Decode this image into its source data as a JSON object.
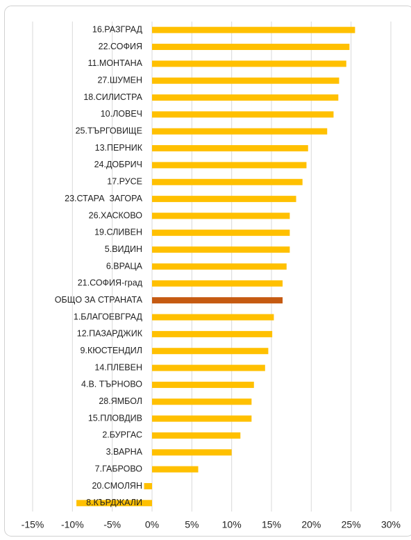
{
  "chart_data": {
    "type": "barh",
    "categories": [
      "16.РАЗГРАД",
      "22.СОФИЯ",
      "11.МОНТАНА",
      "27.ШУМЕН",
      "18.СИЛИСТРА",
      "10.ЛОВЕЧ",
      "25.ТЪРГОВИЩЕ",
      "13.ПЕРНИК",
      "24.ДОБРИЧ",
      "17.РУСЕ",
      "23.СТАРА  ЗАГОРА",
      "26.ХАСКОВО",
      "19.СЛИВЕН",
      "5.ВИДИН",
      "6.ВРАЦА",
      "21.СОФИЯ-град",
      "ОБЩО ЗА СТРАНАТА",
      "1.БЛАГОЕВГРАД",
      "12.ПАЗАРДЖИК",
      "9.КЮСТЕНДИЛ",
      "14.ПЛЕВЕН",
      "4.В. ТЪРНОВО",
      "28.ЯМБОЛ",
      "15.ПЛОВДИВ",
      "2.БУРГАС",
      "3.ВАРНА",
      "7.ГАБРОВО",
      "20.СМОЛЯН",
      "8.КЪРДЖАЛИ"
    ],
    "values": [
      25.5,
      24.8,
      24.4,
      23.5,
      23.4,
      22.8,
      22.0,
      19.6,
      19.4,
      18.9,
      18.1,
      17.3,
      17.3,
      17.3,
      16.9,
      16.4,
      16.4,
      15.3,
      15.1,
      14.6,
      14.2,
      12.8,
      12.5,
      12.5,
      11.1,
      10.0,
      5.8,
      -1.0,
      -9.5
    ],
    "colors": [
      "#ffc000",
      "#ffc000",
      "#ffc000",
      "#ffc000",
      "#ffc000",
      "#ffc000",
      "#ffc000",
      "#ffc000",
      "#ffc000",
      "#ffc000",
      "#ffc000",
      "#ffc000",
      "#ffc000",
      "#ffc000",
      "#ffc000",
      "#ffc000",
      "#c55a11",
      "#ffc000",
      "#ffc000",
      "#ffc000",
      "#ffc000",
      "#ffc000",
      "#ffc000",
      "#ffc000",
      "#ffc000",
      "#ffc000",
      "#ffc000",
      "#ffc000",
      "#ffc000"
    ],
    "xlim": [
      -15,
      30
    ],
    "xticks": [
      {
        "value": -15,
        "label": "-15%"
      },
      {
        "value": -10,
        "label": "-10%"
      },
      {
        "value": -5,
        "label": "-5%"
      },
      {
        "value": 0,
        "label": "0%"
      },
      {
        "value": 5,
        "label": "5%"
      },
      {
        "value": 10,
        "label": "10%"
      },
      {
        "value": 15,
        "label": "15%"
      },
      {
        "value": 20,
        "label": "20%"
      },
      {
        "value": 25,
        "label": "25%"
      },
      {
        "value": 30,
        "label": "30%"
      }
    ],
    "grid": true
  }
}
